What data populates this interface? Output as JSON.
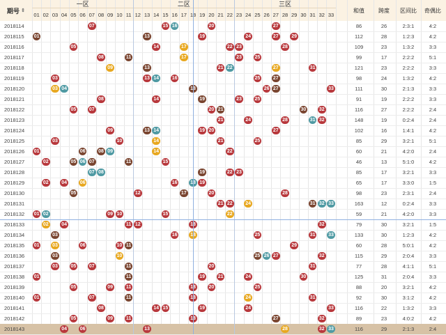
{
  "header": {
    "issue_label": "期号",
    "sort_icon": "⇕",
    "zones": [
      "一区",
      "二区",
      "三区"
    ],
    "numbers": [
      "01",
      "02",
      "03",
      "04",
      "05",
      "06",
      "07",
      "08",
      "09",
      "10",
      "11",
      "12",
      "13",
      "14",
      "15",
      "16",
      "17",
      "18",
      "19",
      "20",
      "21",
      "22",
      "23",
      "24",
      "25",
      "26",
      "27",
      "28",
      "29",
      "30",
      "31",
      "32",
      "33"
    ],
    "stats": [
      "和值",
      "跨度",
      "区间比",
      "奇偶比"
    ]
  },
  "rows": [
    {
      "issue": "2018114",
      "balls": [
        {
          "n": 7,
          "c": "red"
        },
        {
          "n": 15,
          "c": "red"
        },
        {
          "n": 16,
          "c": "teal"
        },
        {
          "n": 20,
          "c": "red"
        },
        {
          "n": 27,
          "c": "red"
        }
      ],
      "sum": "86",
      "span": "26",
      "zr": "2:3:1",
      "oe": "4:2"
    },
    {
      "issue": "2018115",
      "balls": [
        {
          "n": 1,
          "c": "brown"
        },
        {
          "n": 13,
          "c": "brown"
        },
        {
          "n": 19,
          "c": "red"
        },
        {
          "n": 24,
          "c": "red"
        },
        {
          "n": 29,
          "c": "red"
        },
        {
          "n": 27,
          "c": "red"
        }
      ],
      "sum": "112",
      "span": "28",
      "zr": "1:2:3",
      "oe": "4:2"
    },
    {
      "issue": "2018116",
      "balls": [
        {
          "n": 5,
          "c": "red"
        },
        {
          "n": 14,
          "c": "red"
        },
        {
          "n": 17,
          "c": "orange"
        },
        {
          "n": 22,
          "c": "red"
        },
        {
          "n": 23,
          "c": "red"
        },
        {
          "n": 28,
          "c": "red"
        }
      ],
      "sum": "109",
      "span": "23",
      "zr": "1:3:2",
      "oe": "3:3"
    },
    {
      "issue": "2018117",
      "balls": [
        {
          "n": 8,
          "c": "red"
        },
        {
          "n": 11,
          "c": "brown"
        },
        {
          "n": 17,
          "c": "orange"
        },
        {
          "n": 23,
          "c": "red"
        },
        {
          "n": 25,
          "c": "red"
        }
      ],
      "sum": "99",
      "span": "17",
      "zr": "2:2:2",
      "oe": "5:1"
    },
    {
      "issue": "2018118",
      "balls": [
        {
          "n": 9,
          "c": "orange"
        },
        {
          "n": 13,
          "c": "brown"
        },
        {
          "n": 21,
          "c": "red"
        },
        {
          "n": 22,
          "c": "teal"
        },
        {
          "n": 27,
          "c": "orange"
        },
        {
          "n": 31,
          "c": "red"
        }
      ],
      "sum": "121",
      "span": "23",
      "zr": "2:2:2",
      "oe": "3:3"
    },
    {
      "issue": "2018119",
      "balls": [
        {
          "n": 3,
          "c": "red"
        },
        {
          "n": 13,
          "c": "red"
        },
        {
          "n": 14,
          "c": "teal"
        },
        {
          "n": 16,
          "c": "red"
        },
        {
          "n": 25,
          "c": "red"
        },
        {
          "n": 27,
          "c": "brown"
        }
      ],
      "sum": "98",
      "span": "24",
      "zr": "1:3:2",
      "oe": "4:2"
    },
    {
      "issue": "2018120",
      "balls": [
        {
          "n": 3,
          "c": "orange"
        },
        {
          "n": 4,
          "c": "teal"
        },
        {
          "n": 18,
          "c": "brown"
        },
        {
          "n": 26,
          "c": "red"
        },
        {
          "n": 27,
          "c": "brown"
        },
        {
          "n": 33,
          "c": "red"
        }
      ],
      "sum": "111",
      "span": "30",
      "zr": "2:1:3",
      "oe": "3:3"
    },
    {
      "issue": "2018121",
      "balls": [
        {
          "n": 8,
          "c": "red"
        },
        {
          "n": 14,
          "c": "red"
        },
        {
          "n": 19,
          "c": "brown"
        },
        {
          "n": 23,
          "c": "red"
        },
        {
          "n": 25,
          "c": "red"
        }
      ],
      "sum": "91",
      "span": "19",
      "zr": "2:2:2",
      "oe": "3:3"
    },
    {
      "issue": "2018122",
      "balls": [
        {
          "n": 5,
          "c": "red"
        },
        {
          "n": 7,
          "c": "red"
        },
        {
          "n": 20,
          "c": "red"
        },
        {
          "n": 21,
          "c": "brown"
        },
        {
          "n": 30,
          "c": "brown"
        },
        {
          "n": 32,
          "c": "red"
        }
      ],
      "sum": "116",
      "span": "27",
      "zr": "2:2:2",
      "oe": "2:4"
    },
    {
      "issue": "2018123",
      "balls": [
        {
          "n": 21,
          "c": "red"
        },
        {
          "n": 24,
          "c": "red"
        },
        {
          "n": 28,
          "c": "red"
        },
        {
          "n": 31,
          "c": "teal"
        },
        {
          "n": 32,
          "c": "red"
        }
      ],
      "sum": "148",
      "span": "19",
      "zr": "0:2:4",
      "oe": "2:4"
    },
    {
      "issue": "2018124",
      "balls": [
        {
          "n": 9,
          "c": "red"
        },
        {
          "n": 13,
          "c": "brown"
        },
        {
          "n": 14,
          "c": "teal"
        },
        {
          "n": 19,
          "c": "red"
        },
        {
          "n": 20,
          "c": "red"
        },
        {
          "n": 27,
          "c": "red"
        }
      ],
      "sum": "102",
      "span": "16",
      "zr": "1:4:1",
      "oe": "4:2"
    },
    {
      "issue": "2018125",
      "balls": [
        {
          "n": 3,
          "c": "red"
        },
        {
          "n": 10,
          "c": "red"
        },
        {
          "n": 14,
          "c": "orange"
        },
        {
          "n": 21,
          "c": "red"
        },
        {
          "n": 25,
          "c": "red"
        }
      ],
      "sum": "85",
      "span": "29",
      "zr": "3:2:1",
      "oe": "5:1"
    },
    {
      "issue": "2018126",
      "balls": [
        {
          "n": 1,
          "c": "red"
        },
        {
          "n": 6,
          "c": "brown"
        },
        {
          "n": 8,
          "c": "brown"
        },
        {
          "n": 9,
          "c": "teal"
        },
        {
          "n": 14,
          "c": "orange"
        },
        {
          "n": 22,
          "c": "red"
        }
      ],
      "sum": "60",
      "span": "21",
      "zr": "4:2:0",
      "oe": "2:4"
    },
    {
      "issue": "2018127",
      "balls": [
        {
          "n": 2,
          "c": "red"
        },
        {
          "n": 5,
          "c": "brown"
        },
        {
          "n": 6,
          "c": "teal"
        },
        {
          "n": 7,
          "c": "brown"
        },
        {
          "n": 11,
          "c": "brown"
        },
        {
          "n": 15,
          "c": "red"
        }
      ],
      "sum": "46",
      "span": "13",
      "zr": "5:1:0",
      "oe": "4:2"
    },
    {
      "issue": "2018128",
      "balls": [
        {
          "n": 7,
          "c": "teal"
        },
        {
          "n": 8,
          "c": "teal"
        },
        {
          "n": 19,
          "c": "brown"
        },
        {
          "n": 22,
          "c": "red"
        },
        {
          "n": 23,
          "c": "red"
        }
      ],
      "sum": "85",
      "span": "17",
      "zr": "3:2:1",
      "oe": "3:3"
    },
    {
      "issue": "2018129",
      "balls": [
        {
          "n": 2,
          "c": "red"
        },
        {
          "n": 4,
          "c": "red"
        },
        {
          "n": 6,
          "c": "orange"
        },
        {
          "n": 16,
          "c": "red"
        },
        {
          "n": 18,
          "c": "teal"
        },
        {
          "n": 19,
          "c": "red"
        }
      ],
      "sum": "65",
      "span": "17",
      "zr": "3:3:0",
      "oe": "1:5"
    },
    {
      "issue": "2018130",
      "balls": [
        {
          "n": 5,
          "c": "brown"
        },
        {
          "n": 12,
          "c": "red"
        },
        {
          "n": 17,
          "c": "brown"
        },
        {
          "n": 20,
          "c": "red"
        },
        {
          "n": 28,
          "c": "red"
        }
      ],
      "sum": "98",
      "span": "23",
      "zr": "2:3:1",
      "oe": "2:4"
    },
    {
      "issue": "2018131",
      "balls": [
        {
          "n": 21,
          "c": "red"
        },
        {
          "n": 22,
          "c": "red"
        },
        {
          "n": 24,
          "c": "orange"
        },
        {
          "n": 31,
          "c": "brown"
        },
        {
          "n": 32,
          "c": "teal"
        },
        {
          "n": 33,
          "c": "teal"
        }
      ],
      "sum": "163",
      "span": "12",
      "zr": "0:2:4",
      "oe": "3:3"
    },
    {
      "issue": "2018132",
      "balls": [
        {
          "n": 1,
          "c": "red"
        },
        {
          "n": 2,
          "c": "teal"
        },
        {
          "n": 9,
          "c": "red"
        },
        {
          "n": 10,
          "c": "red"
        },
        {
          "n": 15,
          "c": "red"
        },
        {
          "n": 22,
          "c": "orange"
        }
      ],
      "sum": "59",
      "span": "21",
      "zr": "4:2:0",
      "oe": "3:3"
    },
    {
      "issue": "2018133",
      "balls": [
        {
          "n": 2,
          "c": "orange"
        },
        {
          "n": 4,
          "c": "red"
        },
        {
          "n": 11,
          "c": "red"
        },
        {
          "n": 12,
          "c": "red"
        },
        {
          "n": 18,
          "c": "red"
        },
        {
          "n": 32,
          "c": "red"
        }
      ],
      "sum": "79",
      "span": "30",
      "zr": "3:2:1",
      "oe": "1:5"
    },
    {
      "issue": "2018134",
      "balls": [
        {
          "n": 3,
          "c": "brown"
        },
        {
          "n": 16,
          "c": "red"
        },
        {
          "n": 18,
          "c": "orange"
        },
        {
          "n": 25,
          "c": "red"
        },
        {
          "n": 31,
          "c": "red"
        },
        {
          "n": 33,
          "c": "teal"
        }
      ],
      "sum": "133",
      "span": "30",
      "zr": "1:2:3",
      "oe": "4:2"
    },
    {
      "issue": "2018135",
      "balls": [
        {
          "n": 1,
          "c": "red"
        },
        {
          "n": 3,
          "c": "orange"
        },
        {
          "n": 6,
          "c": "red"
        },
        {
          "n": 10,
          "c": "red"
        },
        {
          "n": 11,
          "c": "brown"
        },
        {
          "n": 29,
          "c": "red"
        }
      ],
      "sum": "60",
      "span": "28",
      "zr": "5:0:1",
      "oe": "4:2"
    },
    {
      "issue": "2018136",
      "balls": [
        {
          "n": 3,
          "c": "brown"
        },
        {
          "n": 10,
          "c": "orange"
        },
        {
          "n": 25,
          "c": "brown"
        },
        {
          "n": 26,
          "c": "teal"
        },
        {
          "n": 27,
          "c": "red"
        },
        {
          "n": 32,
          "c": "red"
        }
      ],
      "sum": "115",
      "span": "29",
      "zr": "2:0:4",
      "oe": "3:3"
    },
    {
      "issue": "2018137",
      "balls": [
        {
          "n": 3,
          "c": "red"
        },
        {
          "n": 5,
          "c": "red"
        },
        {
          "n": 7,
          "c": "red"
        },
        {
          "n": 11,
          "c": "brown"
        },
        {
          "n": 20,
          "c": "red"
        },
        {
          "n": 31,
          "c": "red"
        }
      ],
      "sum": "77",
      "span": "28",
      "zr": "4:1:1",
      "oe": "5:1"
    },
    {
      "issue": "2018138",
      "balls": [
        {
          "n": 1,
          "c": "red"
        },
        {
          "n": 11,
          "c": "brown"
        },
        {
          "n": 19,
          "c": "red"
        },
        {
          "n": 21,
          "c": "red"
        },
        {
          "n": 24,
          "c": "red"
        },
        {
          "n": 30,
          "c": "red"
        }
      ],
      "sum": "125",
      "span": "31",
      "zr": "2:0:4",
      "oe": "3:3"
    },
    {
      "issue": "2018139",
      "balls": [
        {
          "n": 5,
          "c": "red"
        },
        {
          "n": 9,
          "c": "red"
        },
        {
          "n": 11,
          "c": "red"
        },
        {
          "n": 18,
          "c": "red"
        },
        {
          "n": 20,
          "c": "red"
        },
        {
          "n": 25,
          "c": "red"
        }
      ],
      "sum": "88",
      "span": "20",
      "zr": "3:2:1",
      "oe": "4:2"
    },
    {
      "issue": "2018140",
      "balls": [
        {
          "n": 1,
          "c": "red"
        },
        {
          "n": 7,
          "c": "red"
        },
        {
          "n": 11,
          "c": "brown"
        },
        {
          "n": 18,
          "c": "red"
        },
        {
          "n": 24,
          "c": "orange"
        },
        {
          "n": 31,
          "c": "red"
        }
      ],
      "sum": "92",
      "span": "30",
      "zr": "3:1:2",
      "oe": "4:2"
    },
    {
      "issue": "2018141",
      "balls": [
        {
          "n": 8,
          "c": "red"
        },
        {
          "n": 14,
          "c": "red"
        },
        {
          "n": 15,
          "c": "red"
        },
        {
          "n": 19,
          "c": "red"
        },
        {
          "n": 24,
          "c": "red"
        },
        {
          "n": 33,
          "c": "red"
        }
      ],
      "sum": "116",
      "span": "22",
      "zr": "1:3:2",
      "oe": "3:3"
    },
    {
      "issue": "2018142",
      "balls": [
        {
          "n": 5,
          "c": "red"
        },
        {
          "n": 9,
          "c": "red"
        },
        {
          "n": 11,
          "c": "red"
        },
        {
          "n": 18,
          "c": "red"
        },
        {
          "n": 27,
          "c": "brown"
        },
        {
          "n": 32,
          "c": "red"
        }
      ],
      "sum": "89",
      "span": "23",
      "zr": "4:0:2",
      "oe": "4:2"
    },
    {
      "issue": "2018143",
      "balls": [
        {
          "n": 4,
          "c": "red"
        },
        {
          "n": 6,
          "c": "red"
        },
        {
          "n": 13,
          "c": "red"
        },
        {
          "n": 28,
          "c": "orange"
        },
        {
          "n": 32,
          "c": "red"
        },
        {
          "n": 33,
          "c": "teal"
        }
      ],
      "sum": "116",
      "span": "29",
      "zr": "2:1:3",
      "oe": "2:4",
      "highlight": true
    }
  ],
  "colors": {
    "red": "#b8383c",
    "brown": "#7a4530",
    "teal": "#4f9aa3",
    "orange": "#e8a820",
    "header_bg": "#fbf2e3",
    "last_row_bg": "#d7c2a6"
  }
}
